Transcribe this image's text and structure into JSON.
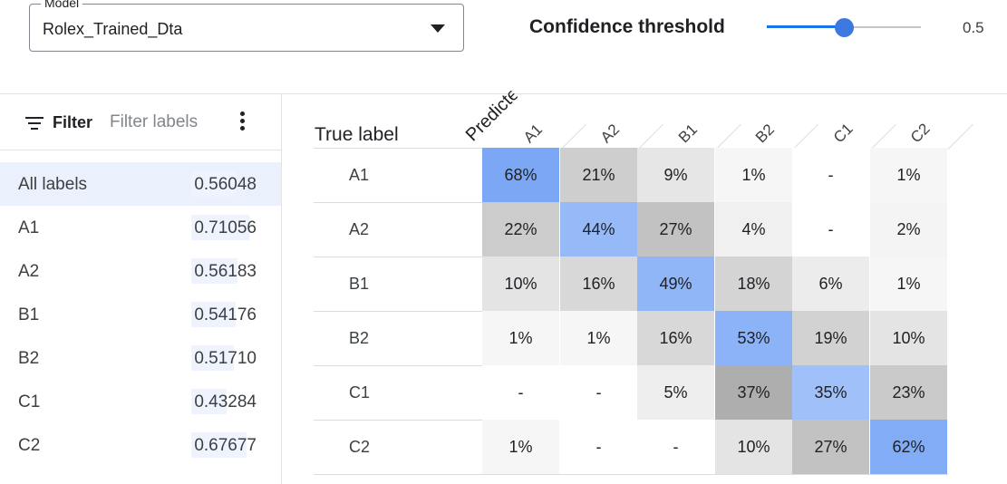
{
  "model": {
    "legend": "Model",
    "value": "Rolex_Trained_Dta"
  },
  "confidence": {
    "label": "Confidence threshold",
    "value": "0.5",
    "fraction": 0.5
  },
  "filter": {
    "label": "Filter",
    "placeholder": "Filter labels"
  },
  "labels": [
    {
      "name": "All labels",
      "score": "0.56048",
      "active": true
    },
    {
      "name": "A1",
      "score": "0.71056"
    },
    {
      "name": "A2",
      "score": "0.56183"
    },
    {
      "name": "B1",
      "score": "0.54176"
    },
    {
      "name": "B2",
      "score": "0.51710"
    },
    {
      "name": "C1",
      "score": "0.43284"
    },
    {
      "name": "C2",
      "score": "0.67677"
    }
  ],
  "matrix": {
    "true_label": "True label",
    "predicted_label": "Predicted label",
    "columns": [
      "A1",
      "A2",
      "B1",
      "B2",
      "C1",
      "C2"
    ],
    "rows": [
      {
        "label": "A1",
        "cells": [
          "68%",
          "21%",
          "9%",
          "1%",
          "-",
          "1%"
        ]
      },
      {
        "label": "A2",
        "cells": [
          "22%",
          "44%",
          "27%",
          "4%",
          "-",
          "2%"
        ]
      },
      {
        "label": "B1",
        "cells": [
          "10%",
          "16%",
          "49%",
          "18%",
          "6%",
          "1%"
        ]
      },
      {
        "label": "B2",
        "cells": [
          "1%",
          "1%",
          "16%",
          "53%",
          "19%",
          "10%"
        ]
      },
      {
        "label": "C1",
        "cells": [
          "-",
          "-",
          "5%",
          "37%",
          "35%",
          "23%"
        ]
      },
      {
        "label": "C2",
        "cells": [
          "1%",
          "-",
          "-",
          "10%",
          "27%",
          "62%"
        ]
      }
    ]
  },
  "colors": {
    "accent": "#1a73e8",
    "diagonal_strong": "#8ab4f8",
    "diagonal_light": "#aecbfa"
  }
}
